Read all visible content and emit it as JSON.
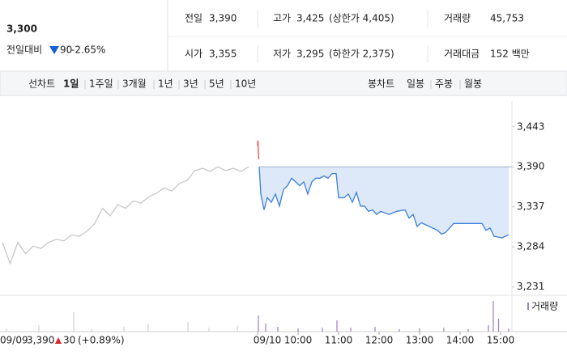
{
  "header": {
    "price": "3,300",
    "change_label": "전일대비",
    "change": "90",
    "change_pct": "-2.65%",
    "color": "#1560d4",
    "stats": [
      {
        "label": "전일",
        "value": "3,390"
      },
      {
        "label": "고가",
        "value": "3,425",
        "note": "(상한가 4,405)",
        "color": "#e0222b"
      },
      {
        "label": "거래량",
        "value": "45,753"
      },
      {
        "label": "시가",
        "value": "3,355",
        "color": "#1560d4"
      },
      {
        "label": "저가",
        "value": "3,295",
        "note": "(하한가 2,375)",
        "color": "#1560d4"
      },
      {
        "label": "거래대금",
        "value": "152 백만"
      }
    ]
  },
  "tabs": {
    "line_label": "선차트",
    "line_items": [
      "1일",
      "1주일",
      "3개월",
      "1년",
      "3년",
      "5년",
      "10년"
    ],
    "active": 0,
    "candle_label": "봉차트",
    "candle_items": [
      "일봉",
      "주봉",
      "월봉"
    ]
  },
  "chart_data": {
    "type": "line",
    "xlim": [
      2.64,
      15.28
    ],
    "ylim": [
      3220,
      3477
    ],
    "xticks": [
      {
        "value": 9,
        "label": "09/10"
      },
      {
        "value": 10,
        "label": "10:00"
      },
      {
        "value": 11,
        "label": "11:00"
      },
      {
        "value": 12,
        "label": "12:00"
      },
      {
        "value": 13,
        "label": "13:00"
      },
      {
        "value": 14,
        "label": "14:00"
      },
      {
        "value": 15,
        "label": "15:00"
      }
    ],
    "yticks": [
      {
        "value": 3443,
        "label": "3,443"
      },
      {
        "value": 3390,
        "label": "3,390"
      },
      {
        "value": 3337,
        "label": "3,337"
      },
      {
        "value": 3284,
        "label": "3,284"
      },
      {
        "value": 3231,
        "label": "3,231"
      }
    ],
    "baseline": 3390,
    "series": [
      {
        "color": "#c8c8c8",
        "x": [
          2.7,
          2.89,
          3.08,
          3.27,
          3.46,
          3.65,
          3.84,
          4.03,
          4.22,
          4.41,
          4.6,
          4.79,
          4.98,
          5.17,
          5.36,
          5.55,
          5.74,
          5.93,
          6.12,
          6.31,
          6.5,
          6.69,
          6.88,
          7.07,
          7.26,
          7.45,
          7.64,
          7.83,
          8.02,
          8.21,
          8.4,
          8.59,
          8.78
        ],
        "values": [
          3290,
          3262,
          3290,
          3275,
          3285,
          3282,
          3290,
          3294,
          3292,
          3300,
          3298,
          3305,
          3315,
          3335,
          3325,
          3340,
          3335,
          3345,
          3342,
          3350,
          3355,
          3362,
          3358,
          3368,
          3372,
          3385,
          3388,
          3384,
          3390,
          3385,
          3388,
          3384,
          3390
        ]
      },
      {
        "color": "#f04a4a",
        "x": [
          9.0,
          9.01,
          9.02,
          9.03
        ],
        "values": [
          3418,
          3425,
          3410,
          3400
        ]
      },
      {
        "color": "#3b7ddd",
        "fill": "#dde9f8",
        "x": [
          9.04,
          9.08,
          9.16,
          9.24,
          9.34,
          9.44,
          9.54,
          9.64,
          9.74,
          9.84,
          9.94,
          10.04,
          10.14,
          10.24,
          10.34,
          10.44,
          10.54,
          10.64,
          10.74,
          10.84,
          10.94,
          11.0,
          11.14,
          11.24,
          11.34,
          11.44,
          11.54,
          11.64,
          11.74,
          11.84,
          11.94,
          12.04,
          12.24,
          12.44,
          12.64,
          12.74,
          12.84,
          12.94,
          13.04,
          13.24,
          13.44,
          13.54,
          13.64,
          13.84,
          14.24,
          14.54,
          14.64,
          14.74,
          14.84,
          15.04,
          15.2
        ],
        "values": [
          3390,
          3354,
          3333,
          3349,
          3343,
          3354,
          3338,
          3360,
          3365,
          3375,
          3370,
          3365,
          3370,
          3354,
          3370,
          3375,
          3375,
          3378,
          3375,
          3381,
          3381,
          3349,
          3349,
          3354,
          3343,
          3356,
          3338,
          3338,
          3331,
          3333,
          3327,
          3331,
          3327,
          3331,
          3333,
          3322,
          3327,
          3311,
          3316,
          3311,
          3306,
          3301,
          3303,
          3315,
          3315,
          3315,
          3306,
          3309,
          3298,
          3296,
          3300
        ]
      }
    ],
    "volume": {
      "label": "거래량",
      "ylim": [
        0,
        100
      ],
      "marker_color": "#9b7fc7",
      "series": [
        {
          "color": "#d0d0d0",
          "x": [
            2.8,
            3.6,
            4.46,
            4.9,
            5.7,
            6.3,
            7.28,
            7.8,
            8.5
          ],
          "values": [
            10,
            20,
            60,
            8,
            15,
            25,
            30,
            12,
            18
          ]
        },
        {
          "color": "#9b7fc7",
          "x": [
            9.02,
            9.2,
            9.5,
            10.0,
            10.6,
            10.96,
            11.3,
            11.9,
            12.5,
            13.0,
            13.6,
            14.2,
            14.7,
            14.82,
            14.95,
            15.2
          ],
          "values": [
            50,
            25,
            15,
            10,
            12,
            35,
            12,
            15,
            8,
            10,
            12,
            8,
            20,
            95,
            40,
            10
          ]
        }
      ]
    },
    "prev_day": {
      "date": "09/09",
      "price": "3,390",
      "change": "30",
      "change_pct": "(+0.89%)",
      "color": "#e0222b"
    }
  }
}
